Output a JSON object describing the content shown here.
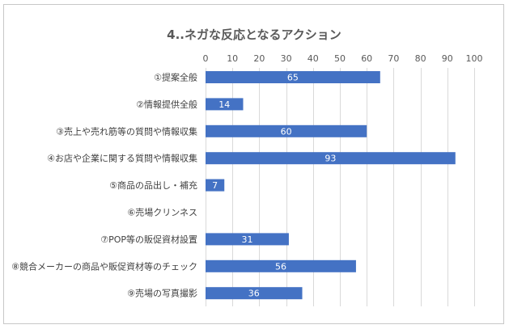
{
  "chart_data": {
    "type": "bar",
    "orientation": "horizontal",
    "title": "4..ネガな反応となるアクション",
    "categories": [
      "①提案全般",
      "②情報提供全般",
      "③売上や売れ筋等の質問や情報収集",
      "④お店や企業に関する質問や情報収集",
      "⑤商品の品出し・補充",
      "⑥売場クリンネス",
      "⑦POP等の販促資材設置",
      "⑧競合メーカーの商品や販促資材等のチェック",
      "⑨売場の写真撮影"
    ],
    "values": [
      65,
      14,
      60,
      93,
      7,
      null,
      31,
      56,
      36
    ],
    "data_labels": [
      "65",
      "14",
      "60",
      "93",
      "7",
      "",
      "31",
      "56",
      "36"
    ],
    "xlim": [
      0,
      100
    ],
    "xticks": [
      0,
      10,
      20,
      30,
      40,
      50,
      60,
      70,
      80,
      90,
      100
    ],
    "tick_labels": [
      "0",
      "10",
      "20",
      "30",
      "40",
      "50",
      "60",
      "70",
      "80",
      "90",
      "100"
    ],
    "axis_position": "top",
    "grid": true,
    "bar_color": "#4472c4"
  }
}
